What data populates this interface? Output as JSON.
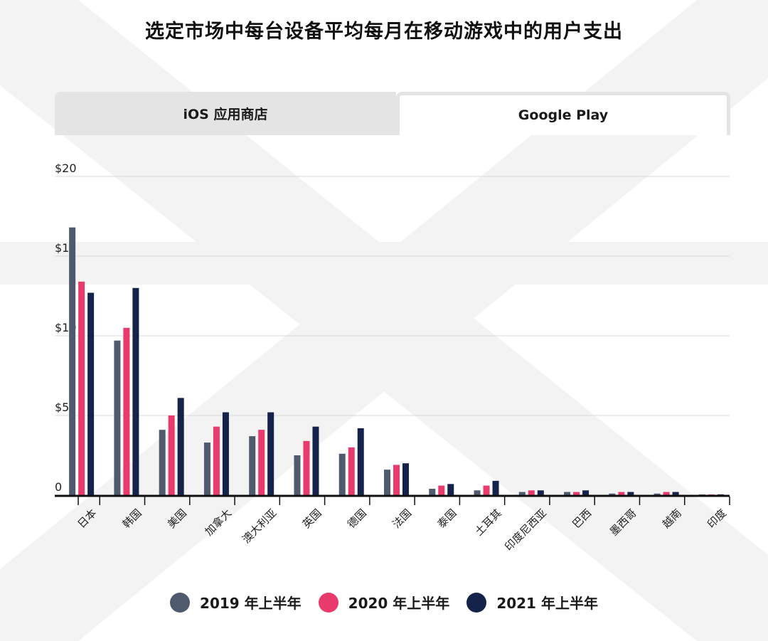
{
  "title": "选定市场中每台设备平均每月在移动游戏中的用户支出",
  "tabs": [
    {
      "label": "iOS 应用商店",
      "active": false
    },
    {
      "label": "Google Play",
      "active": true
    }
  ],
  "colors": {
    "series": [
      "#4f5a6e",
      "#e93a6e",
      "#15224a"
    ],
    "grid": "#d9d9d9",
    "axis": "#111111",
    "tab_inactive": "#e4e4e4"
  },
  "chart_data": {
    "type": "bar",
    "title": "选定市场中每台设备平均每月在移动游戏中的用户支出",
    "xlabel": "",
    "ylabel": "",
    "ylim": [
      0,
      20
    ],
    "yticks": [
      0,
      5,
      10,
      15,
      20
    ],
    "ytick_labels": [
      "0",
      "$5",
      "$10",
      "$15",
      "$20"
    ],
    "grid": true,
    "legend_position": "bottom",
    "categories": [
      "日本",
      "韩国",
      "美国",
      "加拿大",
      "澳大利亚",
      "英国",
      "德国",
      "法国",
      "泰国",
      "土耳其",
      "印度尼西亚",
      "巴西",
      "墨西哥",
      "越南",
      "印度"
    ],
    "series": [
      {
        "name": "2019 年上半年",
        "color": "#4f5a6e",
        "values": [
          16.8,
          9.7,
          4.1,
          3.3,
          3.7,
          2.5,
          2.6,
          1.6,
          0.4,
          0.3,
          0.2,
          0.2,
          0.1,
          0.1,
          0.03
        ]
      },
      {
        "name": "2020 年上半年",
        "color": "#e93a6e",
        "values": [
          13.4,
          10.5,
          5.0,
          4.3,
          4.1,
          3.4,
          3.0,
          1.9,
          0.6,
          0.6,
          0.3,
          0.2,
          0.2,
          0.2,
          0.04
        ]
      },
      {
        "name": "2021 年上半年",
        "color": "#15224a",
        "values": [
          12.7,
          13.0,
          6.1,
          5.2,
          5.2,
          4.3,
          4.2,
          2.0,
          0.7,
          0.9,
          0.3,
          0.3,
          0.2,
          0.2,
          0.05
        ]
      }
    ]
  }
}
